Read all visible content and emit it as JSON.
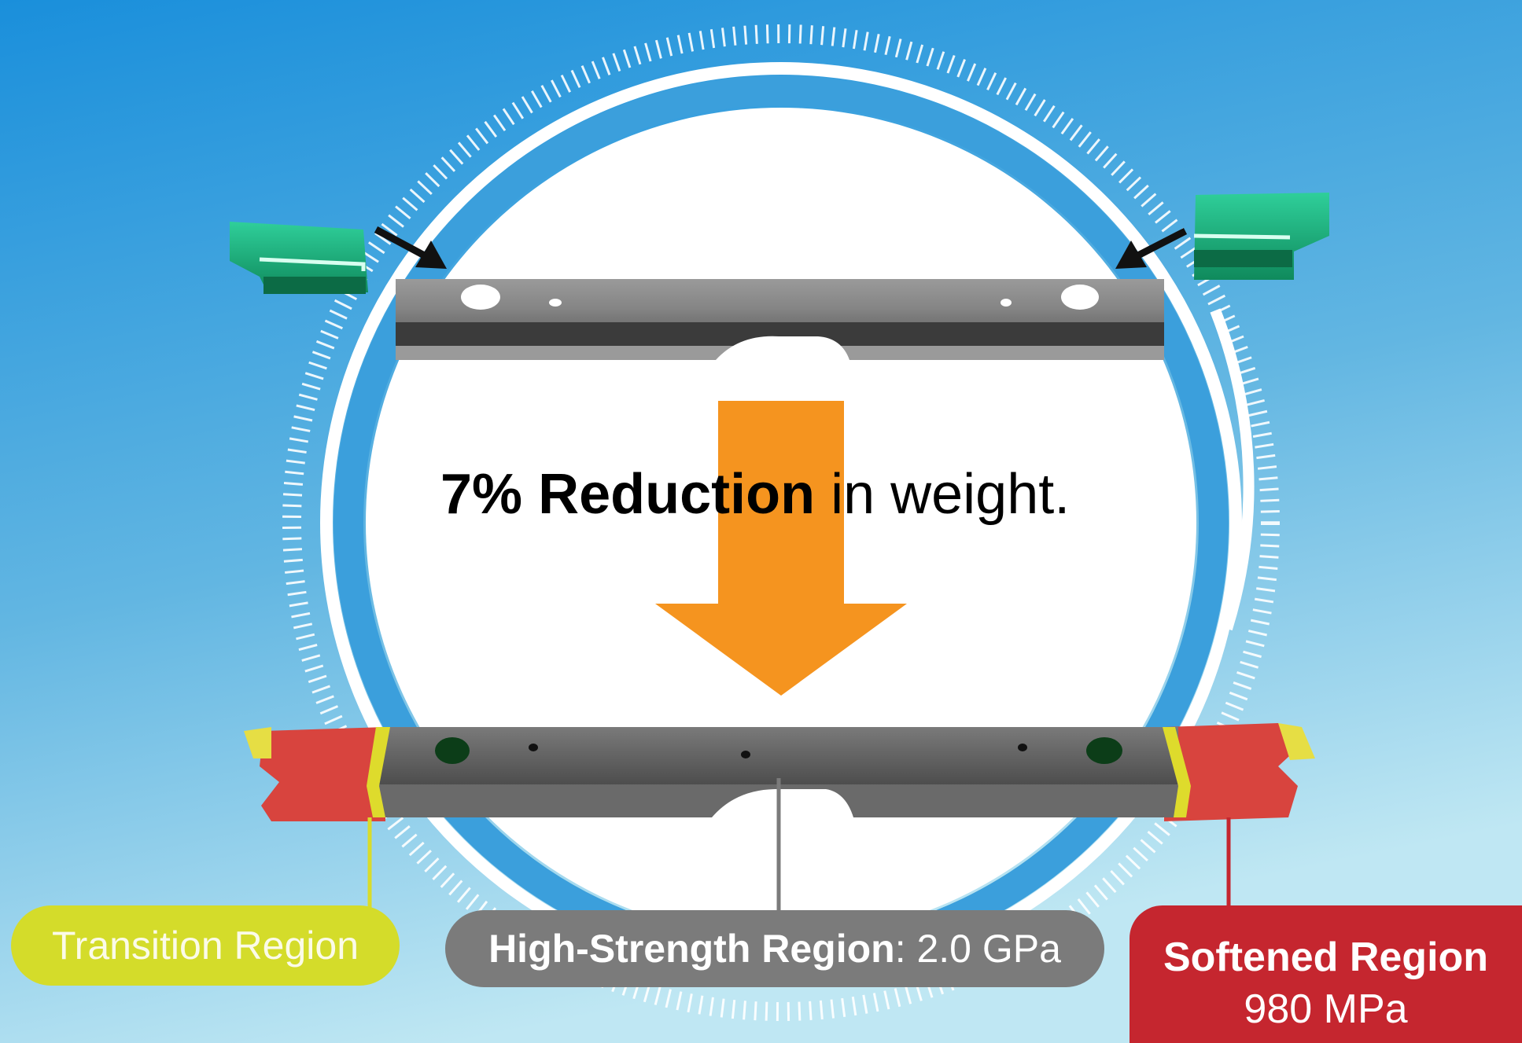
{
  "headline": {
    "bold": "7% Reduction",
    "rest": " in weight."
  },
  "regions": {
    "transition": {
      "label": "Transition Region",
      "color": "#d4dc2a"
    },
    "high_strength": {
      "name": "High-Strength Region",
      "value": ": 2.0 GPa",
      "color": "#7b7b7b"
    },
    "softened": {
      "name": "Softened Region",
      "value": "980 MPa",
      "color": "#c5262f"
    }
  },
  "colors": {
    "background_top": "#1e96dc",
    "background_bottom": "#b9e6f4",
    "arrow": "#f5941f",
    "bracket": "#2bb58a",
    "beam": "#6f6f6f"
  }
}
